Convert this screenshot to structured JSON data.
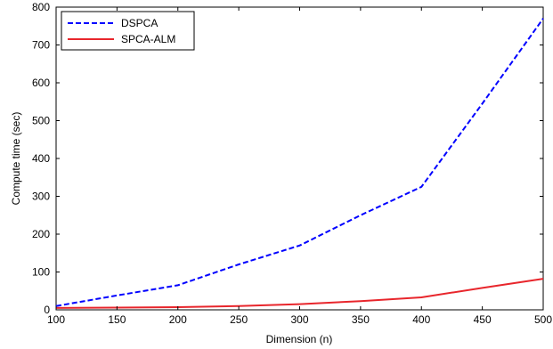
{
  "chart_data": {
    "type": "line",
    "xlabel": "Dimension (n)",
    "ylabel": "Compute time (sec)",
    "xlim": [
      100,
      500
    ],
    "ylim": [
      0,
      800
    ],
    "xticks": [
      100,
      150,
      200,
      250,
      300,
      350,
      400,
      450,
      500
    ],
    "yticks": [
      0,
      100,
      200,
      300,
      400,
      500,
      600,
      700,
      800
    ],
    "grid": false,
    "legend_position": "top-left",
    "series": [
      {
        "name": "DSPCA",
        "color": "#0000ff",
        "style": "dashed",
        "x": [
          100,
          150,
          200,
          250,
          300,
          350,
          400,
          450,
          500
        ],
        "y": [
          10,
          38,
          65,
          120,
          170,
          250,
          325,
          545,
          770
        ]
      },
      {
        "name": "SPCA-ALM",
        "color": "#e8262c",
        "style": "solid",
        "x": [
          100,
          150,
          200,
          250,
          300,
          350,
          400,
          450,
          500
        ],
        "y": [
          5,
          6,
          7,
          10,
          15,
          23,
          33,
          58,
          82
        ]
      }
    ]
  }
}
